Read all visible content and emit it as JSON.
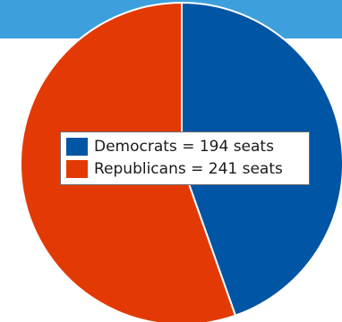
{
  "colors": {
    "header": "#3da0dd",
    "democrats": "#0055a4",
    "republicans": "#e33a05",
    "slice_border": "#ffffff"
  },
  "chart_data": {
    "type": "pie",
    "title": "",
    "legend_placement": "center",
    "slices": [
      {
        "label": "Democrats = 194 seats",
        "value": 194,
        "color_key": "democrats"
      },
      {
        "label": "Republicans = 241 seats",
        "value": 241,
        "color_key": "republicans"
      }
    ]
  }
}
